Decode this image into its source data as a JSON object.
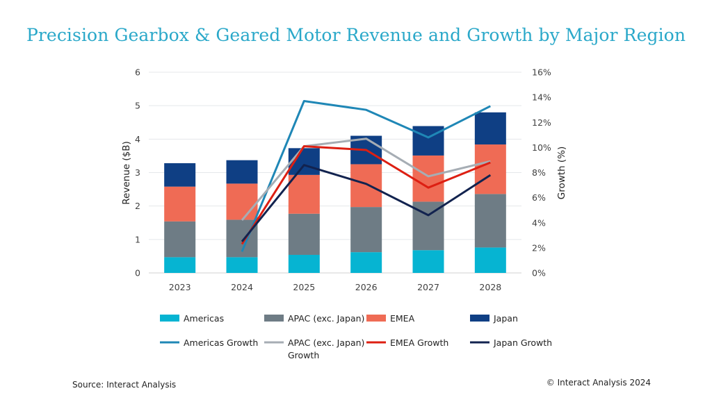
{
  "title": "Precision Gearbox & Geared Motor Revenue and Growth by Major Region",
  "source": "Source: Interact Analysis",
  "copyright": "© Interact Analysis 2024",
  "chart_data": {
    "type": "bar",
    "stacked": true,
    "categories": [
      "2023",
      "2024",
      "2025",
      "2026",
      "2027",
      "2028"
    ],
    "ylabel": "Revenue ($B)",
    "ylim": [
      0,
      6
    ],
    "yticks": [
      "0",
      "1",
      "2",
      "3",
      "4",
      "5",
      "6"
    ],
    "y2label": "Growth (%)",
    "y2lim": [
      0,
      16
    ],
    "y2ticks": [
      "0%",
      "2%",
      "4%",
      "6%",
      "8%",
      "10%",
      "12%",
      "14%",
      "16%"
    ],
    "legend_position": "bottom",
    "series": [
      {
        "name": "Americas",
        "color": "#06b4d2",
        "values": [
          0.47,
          0.47,
          0.54,
          0.62,
          0.68,
          0.76
        ]
      },
      {
        "name": "APAC (exc. Japan)",
        "color": "#6e7c85",
        "values": [
          1.07,
          1.12,
          1.23,
          1.35,
          1.45,
          1.6
        ]
      },
      {
        "name": "EMEA",
        "color": "#ef6b55",
        "values": [
          1.04,
          1.08,
          1.16,
          1.28,
          1.38,
          1.48
        ]
      },
      {
        "name": "Japan",
        "color": "#0f3f84",
        "values": [
          0.7,
          0.7,
          0.8,
          0.85,
          0.88,
          0.96
        ]
      }
    ],
    "growth_series": [
      {
        "name": "Americas Growth",
        "color": "#1f87b6",
        "values": [
          null,
          1.7,
          13.7,
          13.0,
          10.8,
          13.3
        ]
      },
      {
        "name": "APAC (exc. Japan) Growth",
        "color": "#a6adb4",
        "values": [
          null,
          4.2,
          10.1,
          10.7,
          7.7,
          8.9
        ]
      },
      {
        "name": "EMEA Growth",
        "color": "#dd1f12",
        "values": [
          null,
          2.3,
          10.1,
          9.8,
          6.8,
          8.8
        ]
      },
      {
        "name": "Japan Growth",
        "color": "#12234f",
        "values": [
          null,
          2.5,
          8.6,
          7.1,
          4.6,
          7.8
        ]
      }
    ]
  }
}
